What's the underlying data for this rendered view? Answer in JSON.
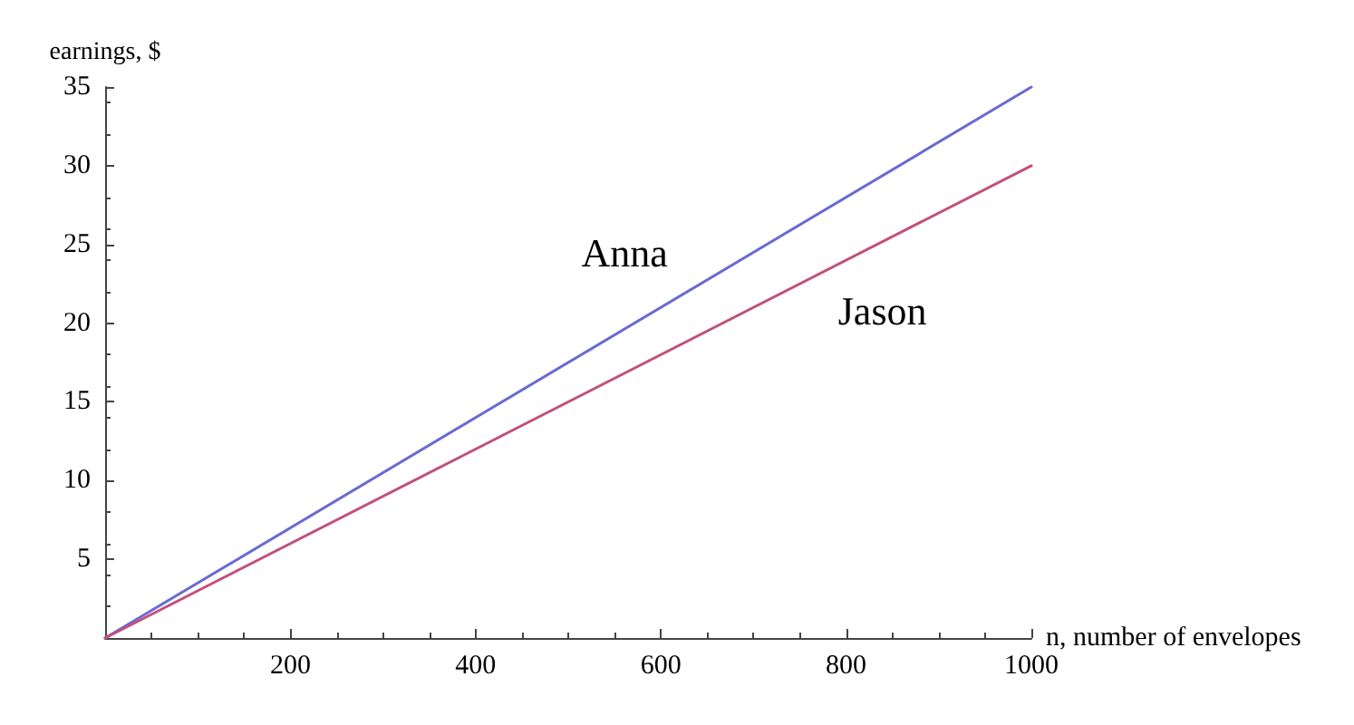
{
  "chart_data": {
    "type": "line",
    "xlabel": "n, number of envelopes",
    "ylabel": "earnings, $",
    "x": [
      0,
      1000
    ],
    "series": [
      {
        "name": "Anna",
        "color": "#6a6ad2",
        "values": [
          0,
          35
        ]
      },
      {
        "name": "Jason",
        "color": "#c2507c",
        "values": [
          0,
          30
        ]
      }
    ],
    "xlim": [
      0,
      1000
    ],
    "ylim": [
      0,
      35
    ],
    "xticks": [
      200,
      400,
      600,
      800,
      1000
    ],
    "yticks": [
      5,
      10,
      15,
      20,
      25,
      30,
      35
    ],
    "grid": false,
    "legend": false,
    "marker": "none",
    "line_style": "solid"
  }
}
